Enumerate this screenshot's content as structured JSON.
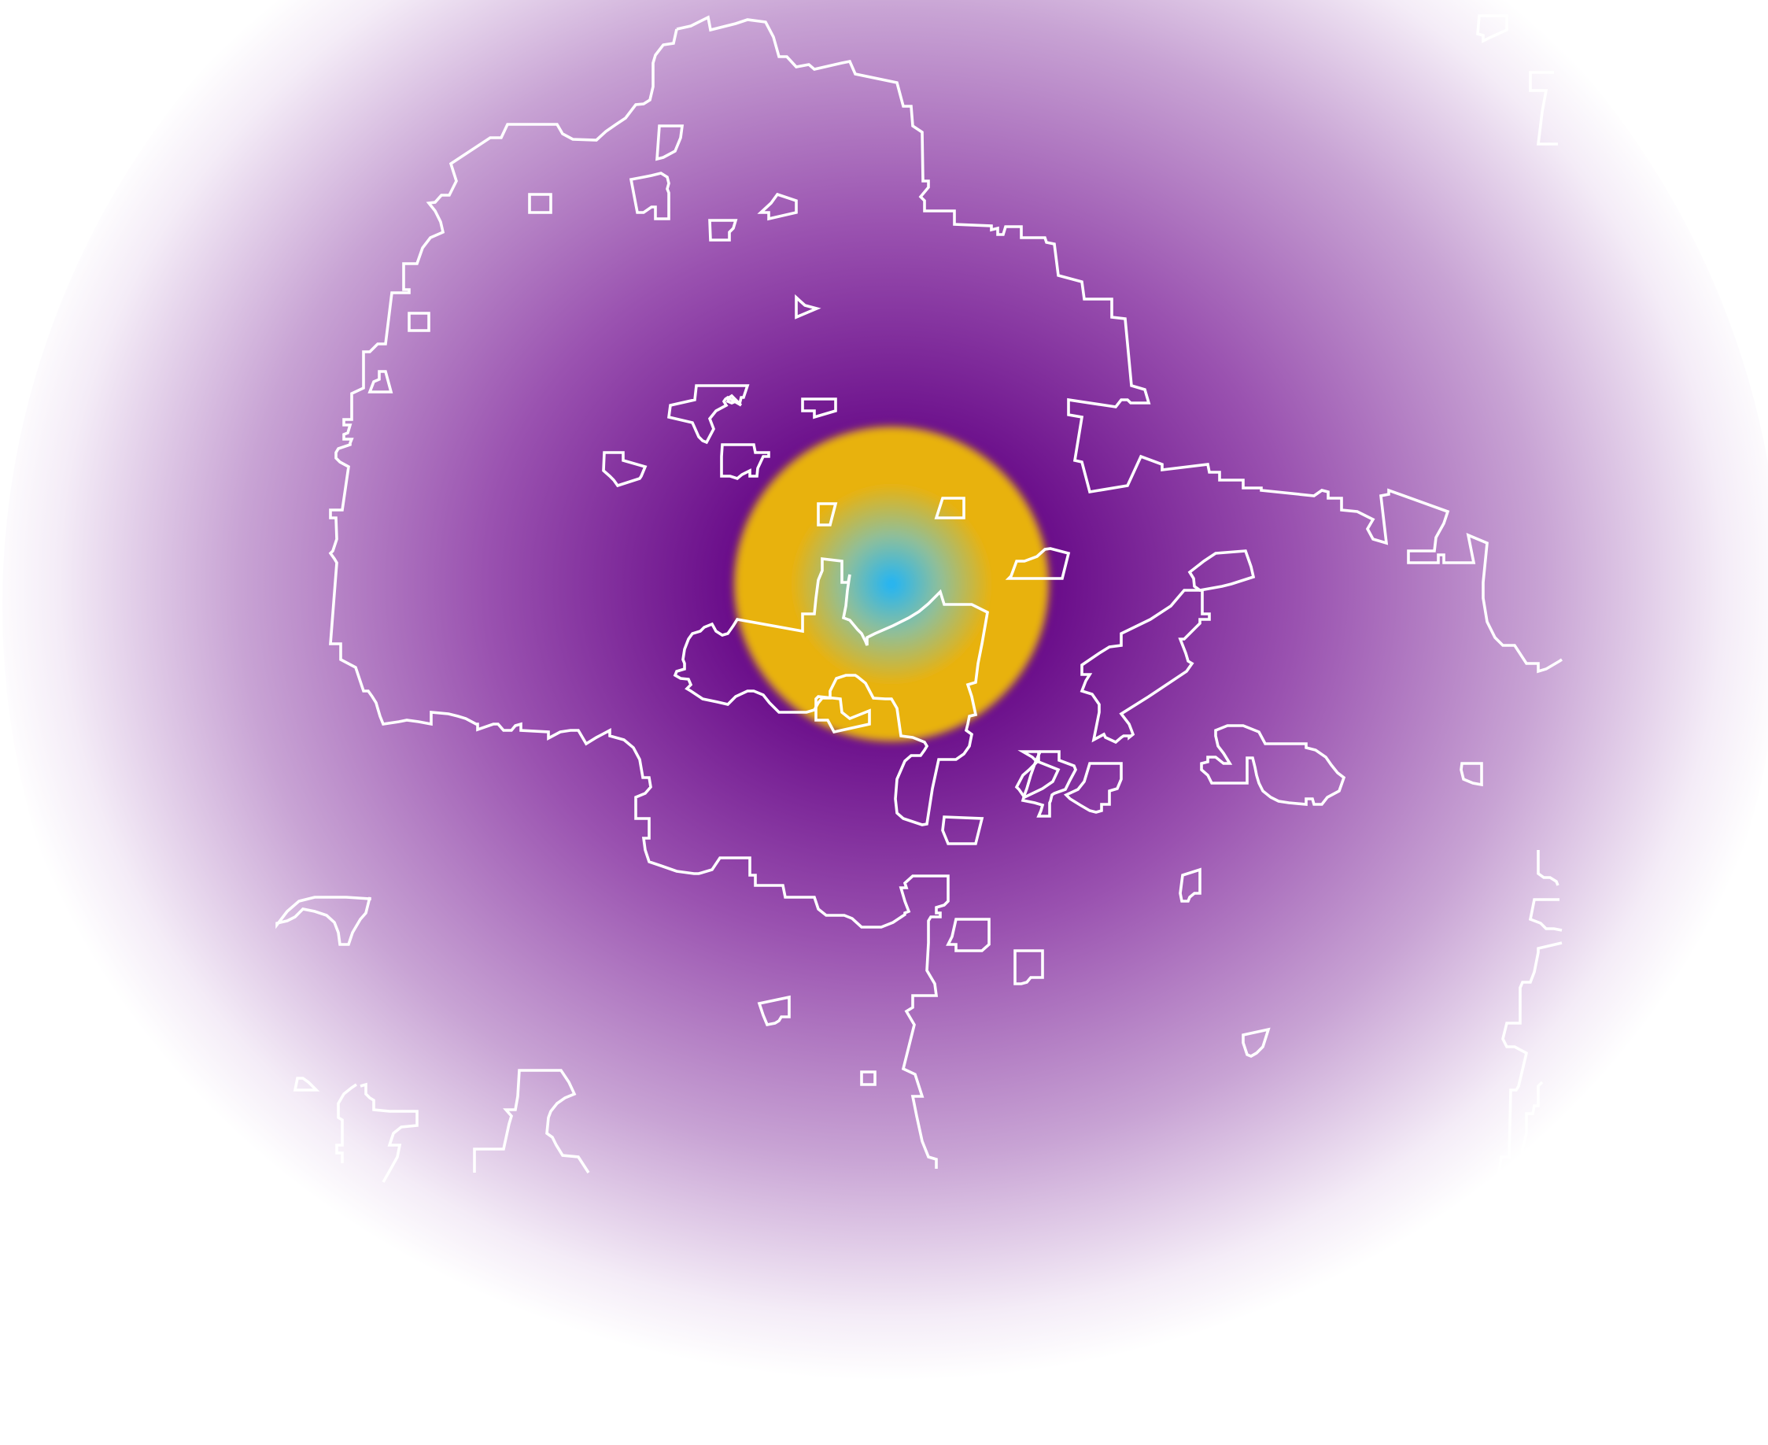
{
  "map": {
    "type": "heatmap-overlay",
    "background_color": "#ffffff",
    "boundary_color": "#ffffff",
    "heat_colors": {
      "outer_fade": "#ffffff",
      "halo": "#c8a3d4",
      "mid": "#9a52b0",
      "inner": "#6a0d8a",
      "core_edge": "#e8b20f",
      "core_mid": "#8fbf9a",
      "peak": "#20b4f6"
    },
    "layers": [
      "density-heat",
      "region-boundaries"
    ]
  }
}
